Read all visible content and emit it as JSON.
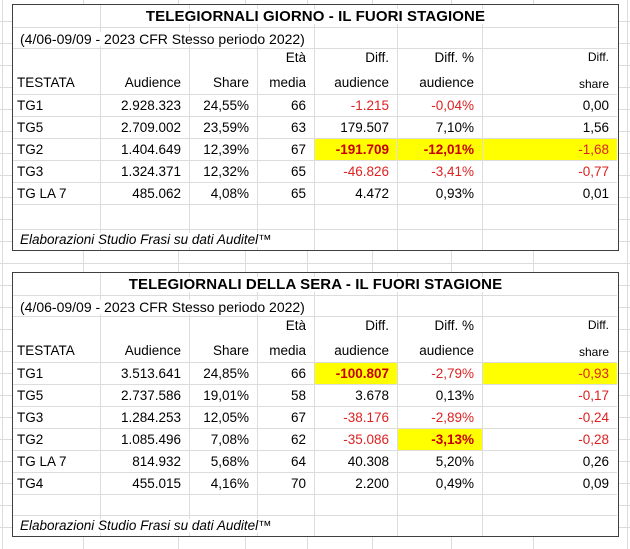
{
  "tables": [
    {
      "title": "TELEGIORNALI GIORNO - IL FUORI STAGIONE",
      "subtitle": "(4/06-09/09 - 2023 CFR Stesso periodo 2022)",
      "header_line1": [
        "",
        "",
        "",
        "Età",
        "Diff.",
        "Diff. %",
        "Diff."
      ],
      "header_line2": [
        "TESTATA",
        "Audience",
        "Share",
        "media",
        "audience",
        "audience",
        "share"
      ],
      "rows": [
        {
          "cells": [
            {
              "text": "TG1"
            },
            {
              "text": "2.928.323"
            },
            {
              "text": "24,55%"
            },
            {
              "text": "66"
            },
            {
              "text": "-1.215",
              "style": "red"
            },
            {
              "text": "-0,04%",
              "style": "red"
            },
            {
              "text": "0,00"
            }
          ]
        },
        {
          "cells": [
            {
              "text": "TG5"
            },
            {
              "text": "2.709.002"
            },
            {
              "text": "23,59%"
            },
            {
              "text": "63"
            },
            {
              "text": "179.507"
            },
            {
              "text": "7,10%"
            },
            {
              "text": "1,56"
            }
          ]
        },
        {
          "cells": [
            {
              "text": "TG2"
            },
            {
              "text": "1.404.649"
            },
            {
              "text": "12,39%"
            },
            {
              "text": "67"
            },
            {
              "text": "-191.709",
              "style": "red bold yellow"
            },
            {
              "text": "-12,01%",
              "style": "red bold yellow"
            },
            {
              "text": "-1,68",
              "style": "red yellow"
            }
          ]
        },
        {
          "cells": [
            {
              "text": "TG3"
            },
            {
              "text": "1.324.371"
            },
            {
              "text": "12,32%"
            },
            {
              "text": "65"
            },
            {
              "text": "-46.826",
              "style": "red"
            },
            {
              "text": "-3,41%",
              "style": "red"
            },
            {
              "text": "-0,77",
              "style": "red"
            }
          ]
        },
        {
          "cells": [
            {
              "text": "TG LA 7"
            },
            {
              "text": "485.062"
            },
            {
              "text": "4,08%"
            },
            {
              "text": "65"
            },
            {
              "text": "4.472"
            },
            {
              "text": "0,93%"
            },
            {
              "text": "0,01"
            }
          ]
        }
      ],
      "source_note": "Elaborazioni Studio Frasi su dati Auditel™"
    },
    {
      "title": "TELEGIORNALI DELLA SERA - IL FUORI STAGIONE",
      "subtitle": "(4/06-09/09 - 2023 CFR Stesso periodo 2022)",
      "header_line1": [
        "",
        "",
        "",
        "Età",
        "Diff.",
        "Diff. %",
        "Diff."
      ],
      "header_line2": [
        "TESTATA",
        "Audience",
        "Share",
        "media",
        "audience",
        "audience",
        "share"
      ],
      "rows": [
        {
          "cells": [
            {
              "text": "TG1"
            },
            {
              "text": "3.513.641"
            },
            {
              "text": "24,85%"
            },
            {
              "text": "66"
            },
            {
              "text": "-100.807",
              "style": "red bold yellow"
            },
            {
              "text": "-2,79%",
              "style": "red"
            },
            {
              "text": "-0,93",
              "style": "red yellow"
            }
          ]
        },
        {
          "cells": [
            {
              "text": "TG5"
            },
            {
              "text": "2.737.586"
            },
            {
              "text": "19,01%"
            },
            {
              "text": "58"
            },
            {
              "text": "3.678"
            },
            {
              "text": "0,13%"
            },
            {
              "text": "-0,17",
              "style": "red"
            }
          ]
        },
        {
          "cells": [
            {
              "text": "TG3"
            },
            {
              "text": "1.284.253"
            },
            {
              "text": "12,05%"
            },
            {
              "text": "67"
            },
            {
              "text": "-38.176",
              "style": "red"
            },
            {
              "text": "-2,89%",
              "style": "red"
            },
            {
              "text": "-0,24",
              "style": "red"
            }
          ]
        },
        {
          "cells": [
            {
              "text": "TG2"
            },
            {
              "text": "1.085.496"
            },
            {
              "text": "7,08%"
            },
            {
              "text": "62"
            },
            {
              "text": "-35.086",
              "style": "red"
            },
            {
              "text": "-3,13%",
              "style": "red bold yellow"
            },
            {
              "text": "-0,28",
              "style": "red"
            }
          ]
        },
        {
          "cells": [
            {
              "text": "TG LA 7"
            },
            {
              "text": "814.932"
            },
            {
              "text": "5,68%"
            },
            {
              "text": "64"
            },
            {
              "text": "40.308"
            },
            {
              "text": "5,20%"
            },
            {
              "text": "0,26"
            }
          ]
        },
        {
          "cells": [
            {
              "text": "TG4"
            },
            {
              "text": "455.015"
            },
            {
              "text": "4,16%"
            },
            {
              "text": "70"
            },
            {
              "text": "2.200"
            },
            {
              "text": "0,49%"
            },
            {
              "text": "0,09"
            }
          ]
        }
      ],
      "source_note": "Elaborazioni Studio Frasi su dati Auditel™"
    }
  ],
  "colors": {
    "highlight": "#ffff00",
    "negative_value": "#dd2222",
    "negative_value_bold": "#c60000",
    "gridline": "#dcdcdc",
    "table_border": "#3f3f3f"
  }
}
